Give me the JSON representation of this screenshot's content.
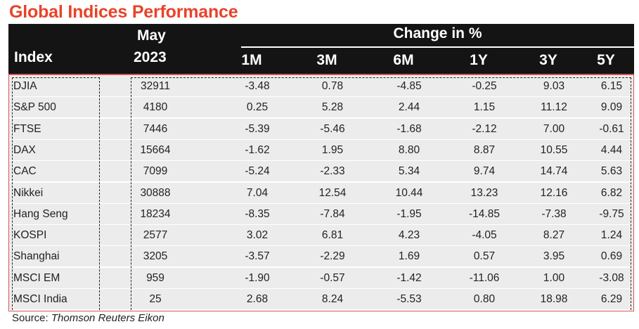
{
  "title": "Global Indices Performance",
  "header": {
    "index": "Index",
    "may_line1": "May",
    "may_line2": "2023",
    "change_group": "Change in %",
    "periods": [
      "1M",
      "3M",
      "6M",
      "1Y",
      "3Y",
      "5Y"
    ]
  },
  "rows": [
    {
      "index": "DJIA",
      "value": "32911",
      "changes": [
        "-3.48",
        "0.78",
        "-4.85",
        "-0.25",
        "9.03",
        "6.15"
      ]
    },
    {
      "index": "S&P 500",
      "value": "4180",
      "changes": [
        "0.25",
        "5.28",
        "2.44",
        "1.15",
        "11.12",
        "9.09"
      ]
    },
    {
      "index": "FTSE",
      "value": "7446",
      "changes": [
        "-5.39",
        "-5.46",
        "-1.68",
        "-2.12",
        "7.00",
        "-0.61"
      ]
    },
    {
      "index": "DAX",
      "value": "15664",
      "changes": [
        "-1.62",
        "1.95",
        "8.80",
        "8.87",
        "10.55",
        "4.44"
      ]
    },
    {
      "index": "CAC",
      "value": "7099",
      "changes": [
        "-5.24",
        "-2.33",
        "5.34",
        "9.74",
        "14.74",
        "5.63"
      ]
    },
    {
      "index": "Nikkei",
      "value": "30888",
      "changes": [
        "7.04",
        "12.54",
        "10.44",
        "13.23",
        "12.16",
        "6.82"
      ]
    },
    {
      "index": "Hang Seng",
      "value": "18234",
      "changes": [
        "-8.35",
        "-7.84",
        "-1.95",
        "-14.85",
        "-7.38",
        "-9.75"
      ]
    },
    {
      "index": "KOSPI",
      "value": "2577",
      "changes": [
        "3.02",
        "6.81",
        "4.23",
        "-4.05",
        "8.27",
        "1.24"
      ]
    },
    {
      "index": "Shanghai",
      "value": "3205",
      "changes": [
        "-3.57",
        "-2.29",
        "1.69",
        "0.57",
        "3.95",
        "0.69"
      ]
    },
    {
      "index": "MSCI EM",
      "value": "959",
      "changes": [
        "-1.90",
        "-0.57",
        "-1.42",
        "-11.06",
        "1.00",
        "-3.08"
      ]
    },
    {
      "index": "MSCI India",
      "value": "25",
      "changes": [
        "2.68",
        "8.24",
        "-5.53",
        "0.80",
        "18.98",
        "6.29"
      ]
    }
  ],
  "source_label": "Source: ",
  "source_name": "Thomson Reuters Eikon",
  "colors": {
    "title": "#e8432a",
    "header_bg": "#141414",
    "row_bg": "#ececec",
    "border": "#d9534f"
  }
}
